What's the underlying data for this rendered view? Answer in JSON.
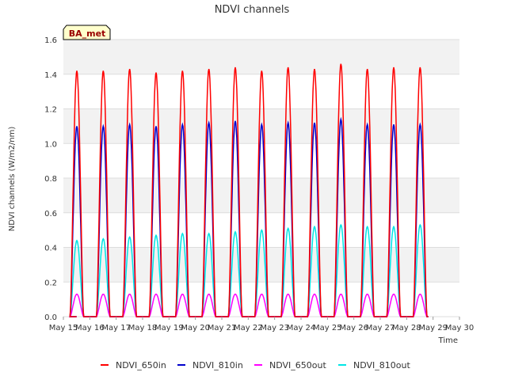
{
  "chart_data": {
    "type": "line",
    "title": "NDVI channels",
    "xlabel": "Time",
    "ylabel": "NDVI channels (W/m2/nm)",
    "ylim": [
      0,
      1.6
    ],
    "xlim": [
      15,
      30
    ],
    "yticks": [
      "0.0",
      "0.2",
      "0.4",
      "0.6",
      "0.8",
      "1.0",
      "1.2",
      "1.4",
      "1.6"
    ],
    "xticks": [
      "May 15",
      "May 16",
      "May 17",
      "May 18",
      "May 19",
      "May 20",
      "May 21",
      "May 22",
      "May 23",
      "May 24",
      "May 25",
      "May 26",
      "May 27",
      "May 28",
      "May 29",
      "May 30"
    ],
    "legend_placement": "bottom",
    "badge": "BA_met",
    "grid": true,
    "days": [
      16,
      17,
      18,
      19,
      20,
      21,
      22,
      23,
      24,
      25,
      26,
      27,
      28,
      29
    ],
    "series": [
      {
        "name": "NDVI_650in",
        "color": "#ff0000",
        "peaks": [
          1.42,
          1.42,
          1.43,
          1.41,
          1.42,
          1.43,
          1.44,
          1.42,
          1.44,
          1.43,
          1.46,
          1.43,
          1.44,
          1.44
        ]
      },
      {
        "name": "NDVI_810in",
        "color": "#0000cc",
        "peaks": [
          1.1,
          1.1,
          1.11,
          1.1,
          1.11,
          1.12,
          1.13,
          1.11,
          1.12,
          1.12,
          1.14,
          1.11,
          1.11,
          1.11
        ]
      },
      {
        "name": "NDVI_650out",
        "color": "#ff00ff",
        "peaks": [
          0.13,
          0.13,
          0.13,
          0.13,
          0.13,
          0.13,
          0.13,
          0.13,
          0.13,
          0.13,
          0.13,
          0.13,
          0.13,
          0.13
        ]
      },
      {
        "name": "NDVI_810out",
        "color": "#00e5e5",
        "peaks": [
          0.44,
          0.45,
          0.46,
          0.47,
          0.48,
          0.48,
          0.49,
          0.5,
          0.51,
          0.52,
          0.53,
          0.52,
          0.52,
          0.53
        ]
      }
    ]
  }
}
